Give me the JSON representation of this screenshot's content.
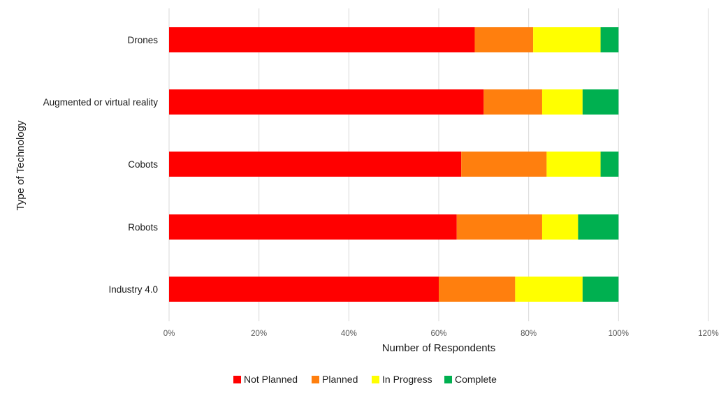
{
  "chart_data": {
    "type": "bar",
    "orientation": "horizontal",
    "stacked": true,
    "title": "",
    "xlabel": "Number of Respondents",
    "ylabel": "Type of Technology",
    "categories": [
      "Drones",
      "Augmented or virtual reality",
      "Cobots",
      "Robots",
      "Industry 4.0"
    ],
    "series": [
      {
        "name": "Not Planned",
        "color": "#ff0000",
        "values": [
          0.68,
          0.7,
          0.65,
          0.64,
          0.6
        ]
      },
      {
        "name": "Planned",
        "color": "#ff7f0e",
        "values": [
          0.13,
          0.13,
          0.19,
          0.19,
          0.17
        ]
      },
      {
        "name": "In Progress",
        "color": "#ffff00",
        "values": [
          0.15,
          0.09,
          0.12,
          0.08,
          0.15
        ]
      },
      {
        "name": "Complete",
        "color": "#00b050",
        "values": [
          0.04,
          0.08,
          0.04,
          0.09,
          0.08
        ]
      }
    ],
    "xlim": [
      0,
      1.2
    ],
    "xticks": [
      "0%",
      "20%",
      "40%",
      "60%",
      "80%",
      "100%",
      "120%"
    ],
    "grid": true,
    "legend": "bottom"
  }
}
